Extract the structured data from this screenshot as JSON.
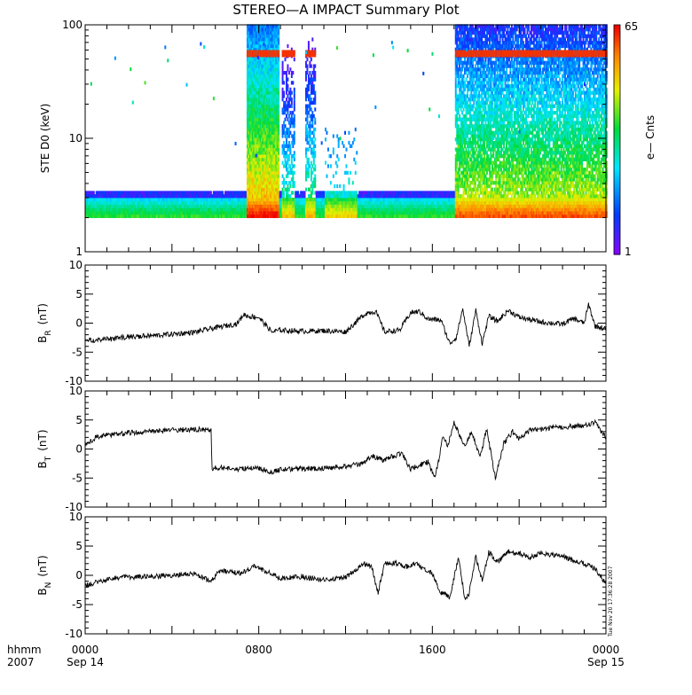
{
  "title": "STEREO—A IMPACT Summary Plot",
  "colorbar": {
    "min_label": "1",
    "max_label": "65",
    "label": "e— Cnts"
  },
  "timestamp": "Tue Nov 20 17:36:28 2007",
  "time_axis": {
    "left_label_top": "hhmm",
    "left_label_bottom": "2007",
    "ticks": [
      {
        "hhmm": "0000",
        "date": "Sep 14"
      },
      {
        "hhmm": "0800",
        "date": ""
      },
      {
        "hhmm": "1600",
        "date": ""
      },
      {
        "hhmm": "0000",
        "date": "Sep 15"
      }
    ]
  },
  "chart_data": [
    {
      "type": "heatmap",
      "panel": "spectrogram",
      "ylabel": "STE D0 (keV)",
      "yscale": "log",
      "ylim": [
        1,
        100
      ],
      "y_tick_labels": [
        "1",
        "10",
        "100"
      ],
      "x_range_hours": [
        0,
        24
      ],
      "color_range": [
        1,
        65
      ],
      "colormap": "rainbow (violet low → red high)",
      "notable_features": [
        {
          "x_hours": [
            7.4,
            8.9
          ],
          "y_kev": [
            2,
            100
          ],
          "description": "broad enhancement with saturated line near 55 keV"
        },
        {
          "x_hours": [
            17.0,
            24.0
          ],
          "y_kev": [
            2,
            100
          ],
          "description": "sustained enhancement with saturated line near 55 keV"
        },
        {
          "x_hours": [
            11.0,
            12.5
          ],
          "y_kev": [
            2,
            10
          ],
          "description": "moderate enhancement"
        }
      ]
    },
    {
      "type": "line",
      "panel": "BR",
      "ylabel_main": "B",
      "ylabel_sub": "R",
      "ylabel_unit": "(nT)",
      "ylim": [
        -10,
        10
      ],
      "y_tick_labels": [
        "-10",
        "-5",
        "0",
        "5",
        "10"
      ],
      "x_hours": [
        0,
        1,
        2,
        3,
        4,
        5,
        6,
        7,
        7.3,
        7.5,
        8,
        8.6,
        9,
        10,
        11,
        12,
        12.6,
        12.8,
        13,
        13.4,
        13.8,
        14.5,
        15,
        15.4,
        15.8,
        16.4,
        16.8,
        17.1,
        17.4,
        17.7,
        18,
        18.3,
        18.6,
        19,
        19.5,
        20,
        21,
        22,
        22.5,
        23,
        23.2,
        23.5,
        24
      ],
      "y_nT": [
        -3,
        -2.8,
        -2.4,
        -2.2,
        -1.9,
        -1.6,
        -0.8,
        -0.1,
        1.5,
        1.2,
        1,
        -1.5,
        -1.2,
        -1.4,
        -1.3,
        -1.5,
        0.6,
        1.3,
        1.8,
        2,
        -1.5,
        -1.2,
        1.8,
        2.0,
        0.7,
        0.5,
        -3.5,
        -2.5,
        2.5,
        -4,
        2.2,
        -3.5,
        1.2,
        0.3,
        2.2,
        1.0,
        0.2,
        -0.2,
        0.8,
        0,
        3.2,
        -0.5,
        -1
      ]
    },
    {
      "type": "line",
      "panel": "BT",
      "ylabel_main": "B",
      "ylabel_sub": "T",
      "ylabel_unit": "(nT)",
      "ylim": [
        -10,
        10
      ],
      "y_tick_labels": [
        "-10",
        "-5",
        "0",
        "5",
        "10"
      ],
      "x_hours": [
        0,
        0.5,
        1,
        2,
        3,
        4,
        5,
        5.8,
        5.85,
        6,
        7,
        8,
        8.5,
        9,
        10,
        11,
        12,
        12.8,
        13.2,
        13.8,
        14.2,
        14.6,
        15,
        15.4,
        15.8,
        16.1,
        16.3,
        16.5,
        16.7,
        17,
        17.5,
        17.8,
        18.2,
        18.5,
        18.9,
        19.3,
        19.7,
        20,
        20.5,
        21,
        22,
        23,
        23.5,
        24
      ],
      "y_nT": [
        0.5,
        2.1,
        2.4,
        2.8,
        3.0,
        3.2,
        3.4,
        3.2,
        -3.5,
        -3.2,
        -3.5,
        -3.2,
        -4.0,
        -3.6,
        -3.4,
        -3.3,
        -3.0,
        -2.5,
        -1.2,
        -2.0,
        -1.2,
        -0.8,
        -3.5,
        -2.8,
        -2.2,
        -5.0,
        -2.0,
        2.5,
        0.5,
        4.5,
        0.2,
        3.0,
        -1.5,
        3.5,
        -5.0,
        1.0,
        3.0,
        1.8,
        3.2,
        3.4,
        3.8,
        4.0,
        4.5,
        2.0
      ]
    },
    {
      "type": "line",
      "panel": "BN",
      "ylabel_main": "B",
      "ylabel_sub": "N",
      "ylabel_unit": "(nT)",
      "ylim": [
        -10,
        10
      ],
      "y_tick_labels": [
        "-10",
        "-5",
        "0",
        "5",
        "10"
      ],
      "x_hours": [
        0,
        1,
        2,
        3,
        4,
        5,
        5.8,
        6.2,
        6.8,
        7.2,
        7.8,
        8.4,
        9,
        10,
        11,
        12,
        12.5,
        12.8,
        13.2,
        13.5,
        13.8,
        14.4,
        14.8,
        15.2,
        15.6,
        16,
        16.4,
        16.8,
        17.2,
        17.5,
        17.7,
        18,
        18.3,
        18.6,
        19,
        19.5,
        20,
        20.5,
        21,
        22,
        23,
        23.5,
        24
      ],
      "y_nT": [
        -1.8,
        -0.6,
        -0.3,
        -0.2,
        0,
        0.3,
        -1.0,
        0.8,
        0.5,
        0.4,
        1.5,
        0.6,
        -0.5,
        -0.2,
        -0.8,
        -0.3,
        1.0,
        2.0,
        1.5,
        -3.0,
        2.2,
        2.0,
        1.5,
        2.0,
        1.2,
        0.3,
        -3.0,
        -3.8,
        3.0,
        -4.0,
        -3.0,
        3.2,
        -1.0,
        4.0,
        2.2,
        4.0,
        3.8,
        3.0,
        3.8,
        3.2,
        2.0,
        1.2,
        -1.5
      ]
    }
  ]
}
